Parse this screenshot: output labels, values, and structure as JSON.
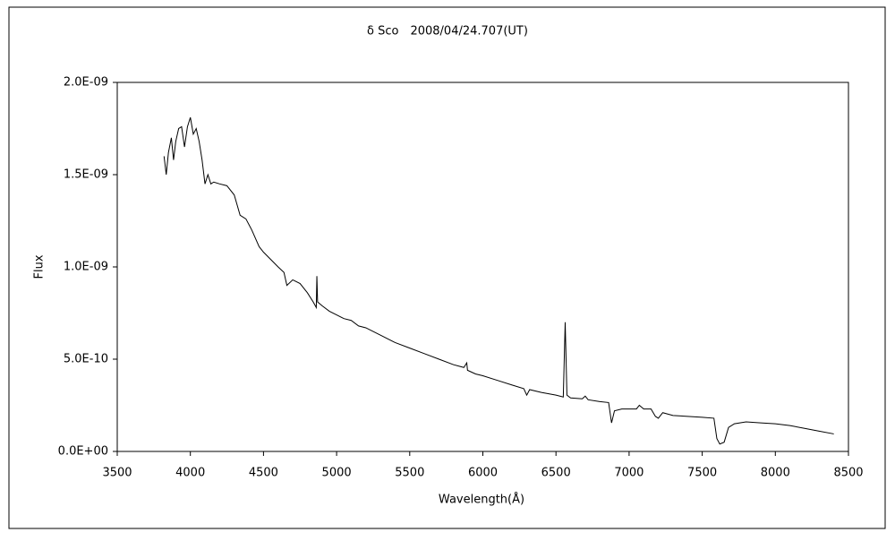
{
  "chart_data": {
    "type": "line",
    "title": "δ Sco　2008/04/24.707(UT)",
    "xlabel": "Wavelength(Å)",
    "ylabel": "Flux",
    "xlim": [
      3500,
      8500
    ],
    "xticks": [
      3500,
      4000,
      4500,
      5000,
      5500,
      6000,
      6500,
      7000,
      7500,
      8000,
      8500
    ],
    "ylim": [
      0,
      2e-09
    ],
    "yticks": [
      {
        "value": 0,
        "label": "0.0E+00"
      },
      {
        "value": 5e-10,
        "label": "5.0E-10"
      },
      {
        "value": 1e-09,
        "label": "1.0E-09"
      },
      {
        "value": 1.5e-09,
        "label": "1.5E-09"
      },
      {
        "value": 2e-09,
        "label": "2.0E-09"
      }
    ],
    "grid": false,
    "series": [
      {
        "color": "#000000",
        "x": [
          3820,
          3835,
          3850,
          3870,
          3885,
          3900,
          3920,
          3940,
          3960,
          3980,
          4000,
          4020,
          4040,
          4060,
          4080,
          4100,
          4120,
          4140,
          4160,
          4200,
          4250,
          4300,
          4340,
          4380,
          4420,
          4470,
          4500,
          4550,
          4600,
          4640,
          4660,
          4700,
          4750,
          4800,
          4840,
          4861,
          4865,
          4870,
          4900,
          4950,
          5000,
          5050,
          5100,
          5150,
          5200,
          5300,
          5400,
          5500,
          5600,
          5700,
          5800,
          5870,
          5890,
          5895,
          5950,
          6000,
          6100,
          6200,
          6280,
          6300,
          6320,
          6400,
          6500,
          6550,
          6563,
          6575,
          6600,
          6680,
          6700,
          6720,
          6800,
          6860,
          6880,
          6900,
          6950,
          7000,
          7050,
          7070,
          7100,
          7150,
          7180,
          7200,
          7230,
          7300,
          7400,
          7500,
          7580,
          7600,
          7620,
          7650,
          7680,
          7720,
          7800,
          7900,
          8000,
          8100,
          8200,
          8300,
          8400
        ],
        "values": [
          1.6e-09,
          1.5e-09,
          1.62e-09,
          1.7e-09,
          1.58e-09,
          1.68e-09,
          1.75e-09,
          1.76e-09,
          1.65e-09,
          1.76e-09,
          1.81e-09,
          1.72e-09,
          1.75e-09,
          1.68e-09,
          1.58e-09,
          1.45e-09,
          1.5e-09,
          1.45e-09,
          1.46e-09,
          1.45e-09,
          1.44e-09,
          1.39e-09,
          1.28e-09,
          1.26e-09,
          1.2e-09,
          1.11e-09,
          1.08e-09,
          1.04e-09,
          1e-09,
          9.7e-10,
          9e-10,
          9.3e-10,
          9.1e-10,
          8.6e-10,
          8.1e-10,
          7.8e-10,
          9.5e-10,
          8.1e-10,
          7.9e-10,
          7.6e-10,
          7.4e-10,
          7.2e-10,
          7.1e-10,
          6.8e-10,
          6.7e-10,
          6.3e-10,
          5.9e-10,
          5.6e-10,
          5.3e-10,
          5e-10,
          4.7e-10,
          4.55e-10,
          4.8e-10,
          4.4e-10,
          4.2e-10,
          4.1e-10,
          3.85e-10,
          3.6e-10,
          3.4e-10,
          3.05e-10,
          3.35e-10,
          3.2e-10,
          3.05e-10,
          2.95e-10,
          7e-10,
          3.05e-10,
          2.9e-10,
          2.85e-10,
          3e-10,
          2.8e-10,
          2.7e-10,
          2.65e-10,
          1.55e-10,
          2.2e-10,
          2.3e-10,
          2.3e-10,
          2.3e-10,
          2.5e-10,
          2.3e-10,
          2.3e-10,
          1.9e-10,
          1.8e-10,
          2.1e-10,
          1.95e-10,
          1.9e-10,
          1.85e-10,
          1.8e-10,
          7e-11,
          4e-11,
          5e-11,
          1.3e-10,
          1.5e-10,
          1.6e-10,
          1.55e-10,
          1.5e-10,
          1.4e-10,
          1.25e-10,
          1.1e-10,
          9.5e-11
        ]
      }
    ]
  }
}
